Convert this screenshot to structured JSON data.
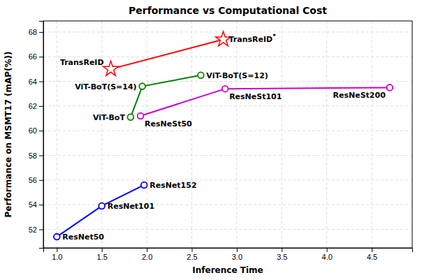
{
  "chart_data": {
    "type": "line",
    "title": "Performance vs Computational Cost",
    "xlabel": "Inference Time",
    "ylabel": "Performance on MSMT17 (mAP(%))",
    "xlim": [
      0.85,
      4.95
    ],
    "ylim": [
      50.5,
      68.9
    ],
    "xticks": [
      {
        "value": 1,
        "label": "1.0"
      },
      1.5,
      {
        "value": 2,
        "label": "2.0"
      },
      2.5,
      {
        "value": 3,
        "label": "3.0"
      },
      3.5,
      {
        "value": 4,
        "label": "4.0"
      },
      4.5
    ],
    "yticks": [
      52,
      54,
      56,
      58,
      60,
      62,
      64,
      66,
      68
    ],
    "grid": true,
    "series": [
      {
        "color": "#0000FF",
        "marker": "circle",
        "x": [
          1.0,
          1.5,
          1.97
        ],
        "values": [
          51.4,
          53.9,
          55.6
        ],
        "labels": [
          "ResNet50",
          "ResNet101",
          "ResNet152"
        ]
      },
      {
        "color": "#008000",
        "marker": "circle",
        "x": [
          1.82,
          1.95,
          2.6
        ],
        "values": [
          61.1,
          63.6,
          64.5
        ],
        "labels": [
          "ViT-BoT",
          "ViT-BoT(S=14)",
          "ViT-BoT(S=12)"
        ]
      },
      {
        "color": "#CC00CC",
        "marker": "circle",
        "x": [
          1.93,
          2.87,
          4.7
        ],
        "values": [
          61.2,
          63.4,
          63.5
        ],
        "labels": [
          "ResNeSt50",
          "ResNeSt101",
          "ResNeSt200"
        ]
      },
      {
        "color": "#FF0000",
        "marker": "star",
        "x": [
          1.6,
          2.85
        ],
        "values": [
          65.0,
          67.4
        ],
        "labels": [
          "TransReID",
          "TransReID*"
        ]
      }
    ]
  }
}
